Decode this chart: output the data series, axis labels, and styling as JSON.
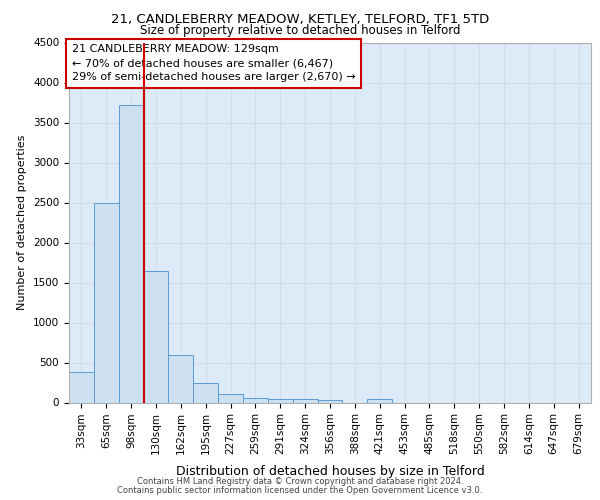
{
  "title_line1": "21, CANDLEBERRY MEADOW, KETLEY, TELFORD, TF1 5TD",
  "title_line2": "Size of property relative to detached houses in Telford",
  "xlabel": "Distribution of detached houses by size in Telford",
  "ylabel": "Number of detached properties",
  "footer_line1": "Contains HM Land Registry data © Crown copyright and database right 2024.",
  "footer_line2": "Contains public sector information licensed under the Open Government Licence v3.0.",
  "categories": [
    "33sqm",
    "65sqm",
    "98sqm",
    "130sqm",
    "162sqm",
    "195sqm",
    "227sqm",
    "259sqm",
    "291sqm",
    "324sqm",
    "356sqm",
    "388sqm",
    "421sqm",
    "453sqm",
    "485sqm",
    "518sqm",
    "550sqm",
    "582sqm",
    "614sqm",
    "647sqm",
    "679sqm"
  ],
  "values": [
    380,
    2500,
    3720,
    1640,
    590,
    240,
    105,
    60,
    50,
    50,
    30,
    0,
    50,
    0,
    0,
    0,
    0,
    0,
    0,
    0,
    0
  ],
  "bar_color": "#cce0f0",
  "bar_edge_color": "#5b9bd5",
  "property_line_idx": 3,
  "annotation_title": "21 CANDLEBERRY MEADOW: 129sqm",
  "annotation_line1": "← 70% of detached houses are smaller (6,467)",
  "annotation_line2": "29% of semi-detached houses are larger (2,670) →",
  "annotation_box_color": "#cc0000",
  "grid_color": "#d0dce8",
  "background_color": "#ddeaf7",
  "ylim": [
    0,
    4500
  ],
  "yticks": [
    0,
    500,
    1000,
    1500,
    2000,
    2500,
    3000,
    3500,
    4000,
    4500
  ],
  "title1_fontsize": 9.5,
  "title2_fontsize": 8.5,
  "xlabel_fontsize": 9,
  "ylabel_fontsize": 8,
  "tick_fontsize": 7.5,
  "footer_fontsize": 6.0
}
